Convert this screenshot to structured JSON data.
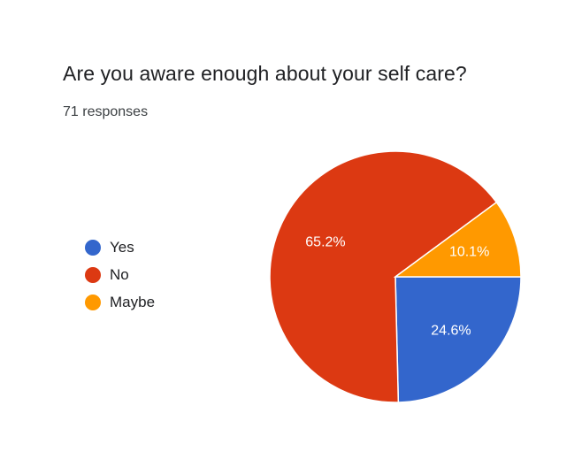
{
  "question": {
    "title": "Are you aware enough about your self care?",
    "responses": "71 responses"
  },
  "chart_data": {
    "type": "pie",
    "title": "Are you aware enough about your self care?",
    "subtitle": "71 responses",
    "legend_position": "left",
    "slices": [
      {
        "label": "Yes",
        "value": 24.6,
        "display": "24.6%",
        "color": "#3366cc"
      },
      {
        "label": "No",
        "value": 65.2,
        "display": "65.2%",
        "color": "#dc3912"
      },
      {
        "label": "Maybe",
        "value": 10.1,
        "display": "10.1%",
        "color": "#ff9900"
      }
    ]
  }
}
